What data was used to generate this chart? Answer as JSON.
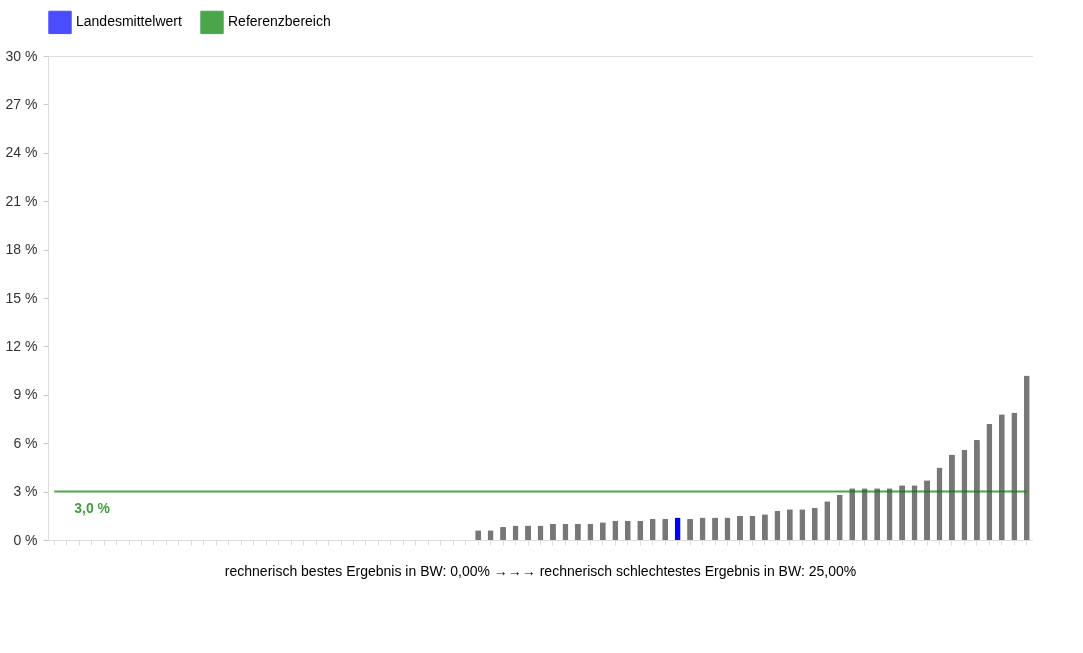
{
  "chart_data": {
    "type": "bar",
    "categories": [
      null,
      null,
      null,
      null,
      null,
      null,
      null,
      null,
      null,
      null,
      null,
      null,
      null,
      null,
      null,
      null,
      null,
      null,
      null,
      null,
      null,
      null,
      null,
      null,
      null,
      null,
      null,
      null,
      null,
      null,
      null,
      null,
      null,
      null,
      null,
      null,
      null,
      null,
      null,
      null,
      null,
      null,
      null,
      null,
      null,
      null,
      null,
      null,
      null,
      null,
      null,
      null,
      null,
      null,
      null,
      null,
      null,
      null,
      null,
      null,
      null,
      null,
      null,
      null,
      null,
      null,
      null,
      null,
      null,
      null,
      null,
      null,
      null,
      null,
      null,
      null,
      null,
      null,
      null
    ],
    "series": [
      {
        "color": "#777777",
        "values": [
          0,
          0,
          0,
          0,
          0,
          0,
          0,
          0,
          0,
          0,
          0,
          0,
          0,
          0,
          0,
          0,
          0,
          0,
          0,
          0,
          0,
          0,
          0,
          0,
          0,
          0,
          0,
          0,
          0,
          0,
          0,
          0,
          0,
          0,
          0.6,
          0.6,
          0.8,
          0.9,
          0.9,
          0.9,
          1.0,
          1.0,
          1.0,
          1.0,
          1.1,
          1.2,
          1.2,
          1.2,
          1.3,
          1.3,
          null,
          1.3,
          1.4,
          1.4,
          1.4,
          1.5,
          1.5,
          1.6,
          1.8,
          1.9,
          1.9,
          2.0,
          2.4,
          2.8,
          3.2,
          3.2,
          3.2,
          3.2,
          3.4,
          3.4,
          3.7,
          4.5,
          5.3,
          5.6,
          6.2,
          7.2,
          7.8,
          7.9,
          10.2
        ]
      },
      {
        "name": "Landesmittelwert",
        "color": "#0000ff",
        "values": [
          null,
          null,
          null,
          null,
          null,
          null,
          null,
          null,
          null,
          null,
          null,
          null,
          null,
          null,
          null,
          null,
          null,
          null,
          null,
          null,
          null,
          null,
          null,
          null,
          null,
          null,
          null,
          null,
          null,
          null,
          null,
          null,
          null,
          null,
          null,
          null,
          null,
          null,
          null,
          null,
          null,
          null,
          null,
          null,
          null,
          null,
          null,
          null,
          null,
          null,
          1.4,
          null,
          null,
          null,
          null,
          null,
          null,
          null,
          null,
          null,
          null,
          null,
          null,
          null,
          null,
          null,
          null,
          null,
          null,
          null,
          null,
          null,
          null,
          null,
          null,
          null,
          null,
          null,
          null
        ]
      },
      {
        "name": "Referenzbereich",
        "type": "line",
        "color": "#008000",
        "values": [
          3.0,
          3.0,
          3.0,
          3.0,
          3.0,
          3.0,
          3.0,
          3.0,
          3.0,
          3.0,
          3.0,
          3.0,
          3.0,
          3.0,
          3.0,
          3.0,
          3.0,
          3.0,
          3.0,
          3.0,
          3.0,
          3.0,
          3.0,
          3.0,
          3.0,
          3.0,
          3.0,
          3.0,
          3.0,
          3.0,
          3.0,
          3.0,
          3.0,
          3.0,
          3.0,
          3.0,
          3.0,
          3.0,
          3.0,
          3.0,
          3.0,
          3.0,
          3.0,
          3.0,
          3.0,
          3.0,
          3.0,
          3.0,
          3.0,
          3.0,
          3.0,
          3.0,
          3.0,
          3.0,
          3.0,
          3.0,
          3.0,
          3.0,
          3.0,
          3.0,
          3.0,
          3.0,
          3.0,
          3.0,
          3.0,
          3.0,
          3.0,
          3.0,
          3.0,
          3.0,
          3.0,
          3.0,
          3.0,
          3.0,
          3.0,
          3.0,
          3.0,
          3.0,
          3.0
        ]
      }
    ],
    "ylim": [
      0,
      30
    ],
    "yticks": [
      {
        "value": 0,
        "label": "0 %"
      },
      {
        "value": 3,
        "label": "3 %"
      },
      {
        "value": 6,
        "label": "6 %"
      },
      {
        "value": 9,
        "label": "9 %"
      },
      {
        "value": 12,
        "label": "12 %"
      },
      {
        "value": 15,
        "label": "15 %"
      },
      {
        "value": 18,
        "label": "18 %"
      },
      {
        "value": 21,
        "label": "21 %"
      },
      {
        "value": 24,
        "label": "24 %"
      },
      {
        "value": 27,
        "label": "27 %"
      },
      {
        "value": 30,
        "label": "30 %"
      }
    ],
    "tick_labels": "y",
    "grid": false,
    "legend": "top left",
    "annotations": [
      {
        "text": "3,0 %",
        "y": 3.0
      },
      "rechnerisch bestes Ergebnis in BW: 0,00% →→→ rechnerisch schlechtestes Ergebnis in BW: 25,00%"
    ]
  }
}
